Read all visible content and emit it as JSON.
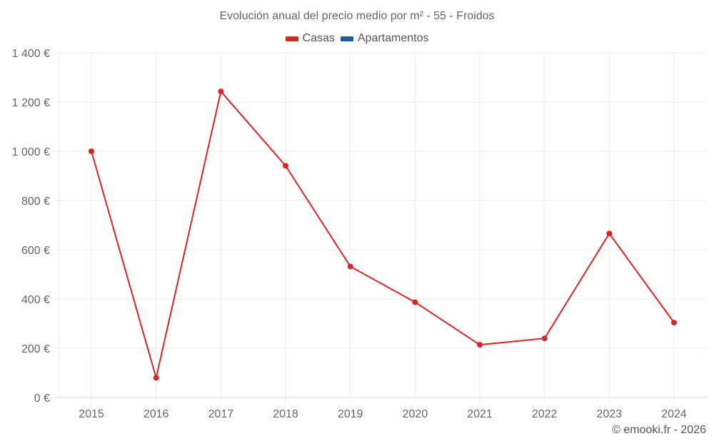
{
  "title": "Evolución anual del precio medio por m² - 55 - Froidos",
  "legend": [
    {
      "label": "Casas",
      "color": "#d62728"
    },
    {
      "label": "Apartamentos",
      "color": "#1f5f99"
    }
  ],
  "footer": "© emooki.fr - 2026",
  "chart_data": {
    "type": "line",
    "title": "Evolución anual del precio medio por m² - 55 - Froidos",
    "xlabel": "",
    "ylabel": "",
    "categories": [
      "2015",
      "2016",
      "2017",
      "2018",
      "2019",
      "2020",
      "2021",
      "2022",
      "2023",
      "2024"
    ],
    "series": [
      {
        "name": "Casas",
        "color": "#d62728",
        "values": [
          1000,
          80,
          1243,
          941,
          532,
          387,
          214,
          240,
          666,
          304
        ]
      },
      {
        "name": "Apartamentos",
        "color": "#1f5f99",
        "values": []
      }
    ],
    "ylim": [
      0,
      1400
    ],
    "yticks": [
      0,
      200,
      400,
      600,
      800,
      1000,
      1200,
      1400
    ],
    "ytick_labels": [
      "0 €",
      "200 €",
      "400 €",
      "600 €",
      "800 €",
      "1 000 €",
      "1 200 €",
      "1 400 €"
    ],
    "grid": true,
    "legend_position": "top"
  }
}
